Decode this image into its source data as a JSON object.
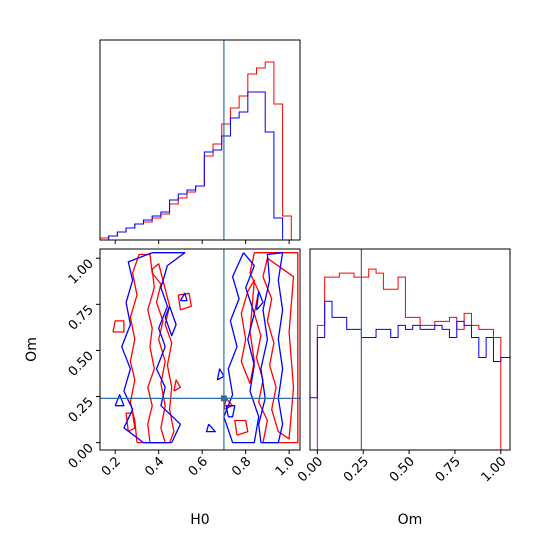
{
  "chart_data": {
    "type": "corner",
    "parameters": [
      "H0",
      "Om"
    ],
    "truths": {
      "H0": 0.7,
      "Om": 0.24
    },
    "truth_color": "#2f6f9f",
    "series_colors": [
      "#ff0000",
      "#0000ff"
    ],
    "axes": {
      "H0": {
        "label": "H0",
        "range": [
          0.13,
          1.05
        ],
        "ticks": [
          0.2,
          0.4,
          0.6,
          0.8,
          1.0
        ],
        "tick_labels": [
          "0.2",
          "0.4",
          "0.6",
          "0.8",
          "1.0"
        ]
      },
      "Om": {
        "label": "Om",
        "range": [
          -0.04,
          1.05
        ],
        "ticks": [
          0.0,
          0.25,
          0.5,
          0.75,
          1.0
        ],
        "tick_labels": [
          "0.00",
          "0.25",
          "0.50",
          "0.75",
          "1.00"
        ]
      }
    },
    "h0_histogram": {
      "bin_edges": [
        0.13,
        0.17,
        0.21,
        0.25,
        0.29,
        0.33,
        0.37,
        0.41,
        0.45,
        0.49,
        0.53,
        0.57,
        0.61,
        0.65,
        0.69,
        0.73,
        0.77,
        0.81,
        0.85,
        0.89,
        0.93,
        0.97,
        1.01,
        1.05
      ],
      "ylim": [
        0,
        1.0
      ],
      "series": [
        {
          "color": "#ff0000",
          "values": [
            0.01,
            0.02,
            0.04,
            0.06,
            0.08,
            0.09,
            0.11,
            0.13,
            0.18,
            0.21,
            0.24,
            0.27,
            0.42,
            0.48,
            0.58,
            0.66,
            0.72,
            0.83,
            0.86,
            0.89,
            0.68,
            0.12,
            0.0
          ]
        },
        {
          "color": "#0000ff",
          "values": [
            0.0,
            0.02,
            0.04,
            0.06,
            0.08,
            0.1,
            0.12,
            0.14,
            0.2,
            0.23,
            0.25,
            0.27,
            0.44,
            0.45,
            0.52,
            0.61,
            0.64,
            0.74,
            0.74,
            0.54,
            0.11,
            0.0,
            0.0
          ]
        }
      ]
    },
    "om_histogram": {
      "bin_edges": [
        -0.04,
        0.0,
        0.04,
        0.08,
        0.12,
        0.16,
        0.2,
        0.24,
        0.28,
        0.32,
        0.36,
        0.4,
        0.44,
        0.48,
        0.52,
        0.56,
        0.6,
        0.64,
        0.68,
        0.72,
        0.76,
        0.8,
        0.84,
        0.88,
        0.92,
        0.96,
        1.0,
        1.05
      ],
      "ylim": [
        0,
        1.0
      ],
      "series": [
        {
          "color": "#ff0000",
          "values": [
            0.0,
            0.62,
            0.86,
            0.86,
            0.88,
            0.88,
            0.86,
            0.86,
            0.9,
            0.88,
            0.8,
            0.8,
            0.86,
            0.66,
            0.66,
            0.62,
            0.62,
            0.64,
            0.64,
            0.66,
            0.6,
            0.68,
            0.62,
            0.6,
            0.6,
            0.56,
            0.0
          ]
        },
        {
          "color": "#0000ff",
          "values": [
            0.26,
            0.56,
            0.74,
            0.66,
            0.66,
            0.6,
            0.6,
            0.56,
            0.56,
            0.6,
            0.6,
            0.56,
            0.62,
            0.6,
            0.62,
            0.6,
            0.6,
            0.62,
            0.6,
            0.56,
            0.64,
            0.62,
            0.56,
            0.46,
            0.56,
            0.44,
            0.46
          ]
        }
      ]
    },
    "contours": [
      {
        "color": "#ff0000",
        "paths": [
          [
            [
              0.3,
              0.0
            ],
            [
              0.29,
              0.12
            ],
            [
              0.27,
              0.22
            ],
            [
              0.29,
              0.34
            ],
            [
              0.27,
              0.44
            ],
            [
              0.29,
              0.56
            ],
            [
              0.27,
              0.68
            ],
            [
              0.3,
              0.8
            ],
            [
              0.28,
              0.92
            ],
            [
              0.31,
              1.02
            ],
            [
              0.36,
              1.02
            ],
            [
              0.37,
              0.92
            ],
            [
              0.41,
              0.86
            ],
            [
              0.39,
              0.76
            ],
            [
              0.42,
              0.66
            ],
            [
              0.4,
              0.56
            ],
            [
              0.43,
              0.44
            ],
            [
              0.41,
              0.32
            ],
            [
              0.43,
              0.2
            ],
            [
              0.41,
              0.08
            ],
            [
              0.43,
              0.0
            ],
            [
              0.3,
              0.0
            ]
          ],
          [
            [
              0.36,
              0.0
            ],
            [
              0.35,
              0.1
            ],
            [
              0.37,
              0.2
            ],
            [
              0.35,
              0.3
            ],
            [
              0.38,
              0.4
            ],
            [
              0.36,
              0.52
            ],
            [
              0.37,
              0.62
            ],
            [
              0.35,
              0.72
            ],
            [
              0.38,
              0.84
            ],
            [
              0.37,
              0.94
            ],
            [
              0.4,
              0.97
            ],
            [
              0.42,
              0.88
            ],
            [
              0.45,
              0.74
            ],
            [
              0.43,
              0.64
            ],
            [
              0.46,
              0.54
            ],
            [
              0.44,
              0.42
            ],
            [
              0.46,
              0.3
            ],
            [
              0.45,
              0.18
            ],
            [
              0.47,
              0.06
            ],
            [
              0.45,
              0.0
            ],
            [
              0.36,
              0.0
            ]
          ],
          [
            [
              0.19,
              0.6
            ],
            [
              0.2,
              0.66
            ],
            [
              0.24,
              0.66
            ],
            [
              0.24,
              0.6
            ],
            [
              0.19,
              0.6
            ]
          ],
          [
            [
              0.5,
              0.72
            ],
            [
              0.49,
              0.8
            ],
            [
              0.54,
              0.81
            ],
            [
              0.55,
              0.74
            ],
            [
              0.5,
              0.72
            ]
          ],
          [
            [
              0.47,
              0.28
            ],
            [
              0.48,
              0.34
            ],
            [
              0.5,
              0.3
            ],
            [
              0.47,
              0.28
            ]
          ],
          [
            [
              0.26,
              0.06
            ],
            [
              0.25,
              0.16
            ],
            [
              0.28,
              0.16
            ],
            [
              0.29,
              0.08
            ],
            [
              0.26,
              0.06
            ]
          ],
          [
            [
              0.84,
              1.03
            ],
            [
              0.82,
              0.92
            ],
            [
              0.86,
              0.82
            ],
            [
              0.84,
              0.7
            ],
            [
              0.87,
              0.58
            ],
            [
              0.85,
              0.46
            ],
            [
              0.88,
              0.34
            ],
            [
              0.86,
              0.22
            ],
            [
              0.9,
              0.12
            ],
            [
              0.88,
              0.0
            ],
            [
              1.04,
              0.0
            ],
            [
              1.04,
              1.03
            ],
            [
              0.84,
              1.03
            ]
          ],
          [
            [
              0.9,
              1.0
            ],
            [
              0.88,
              0.9
            ],
            [
              0.92,
              0.78
            ],
            [
              0.9,
              0.66
            ],
            [
              0.93,
              0.54
            ],
            [
              0.91,
              0.42
            ],
            [
              0.94,
              0.3
            ],
            [
              0.92,
              0.18
            ],
            [
              0.95,
              0.06
            ],
            [
              1.0,
              0.02
            ],
            [
              1.02,
              0.3
            ],
            [
              1.0,
              0.6
            ],
            [
              1.02,
              0.9
            ],
            [
              0.9,
              1.0
            ]
          ],
          [
            [
              0.82,
              0.32
            ],
            [
              0.78,
              0.44
            ],
            [
              0.8,
              0.56
            ],
            [
              0.78,
              0.7
            ],
            [
              0.81,
              0.82
            ],
            [
              0.84,
              0.88
            ],
            [
              0.82,
              0.6
            ],
            [
              0.84,
              0.44
            ],
            [
              0.82,
              0.32
            ]
          ],
          [
            [
              0.76,
              0.04
            ],
            [
              0.75,
              0.12
            ],
            [
              0.8,
              0.12
            ],
            [
              0.81,
              0.06
            ],
            [
              0.76,
              0.04
            ]
          ],
          [
            [
              0.7,
              0.18
            ],
            [
              0.71,
              0.24
            ],
            [
              0.74,
              0.2
            ],
            [
              0.7,
              0.18
            ]
          ]
        ]
      },
      {
        "color": "#0000ff",
        "paths": [
          [
            [
              0.33,
              0.0
            ],
            [
              0.24,
              0.08
            ],
            [
              0.28,
              0.18
            ],
            [
              0.24,
              0.28
            ],
            [
              0.27,
              0.4
            ],
            [
              0.23,
              0.52
            ],
            [
              0.27,
              0.64
            ],
            [
              0.25,
              0.76
            ],
            [
              0.28,
              0.88
            ],
            [
              0.26,
              0.98
            ],
            [
              0.37,
              1.03
            ],
            [
              0.52,
              1.03
            ],
            [
              0.44,
              0.96
            ],
            [
              0.41,
              0.84
            ],
            [
              0.44,
              0.74
            ],
            [
              0.4,
              0.62
            ],
            [
              0.43,
              0.52
            ],
            [
              0.39,
              0.4
            ],
            [
              0.43,
              0.3
            ],
            [
              0.41,
              0.2
            ],
            [
              0.5,
              0.1
            ],
            [
              0.46,
              0.0
            ],
            [
              0.33,
              0.0
            ]
          ],
          [
            [
              0.45,
              0.74
            ],
            [
              0.43,
              0.68
            ],
            [
              0.46,
              0.58
            ],
            [
              0.48,
              0.64
            ],
            [
              0.45,
              0.74
            ]
          ],
          [
            [
              0.2,
              0.2
            ],
            [
              0.22,
              0.26
            ],
            [
              0.24,
              0.2
            ],
            [
              0.2,
              0.2
            ]
          ],
          [
            [
              0.5,
              0.77
            ],
            [
              0.52,
              0.81
            ],
            [
              0.53,
              0.77
            ],
            [
              0.5,
              0.77
            ]
          ],
          [
            [
              0.63,
              0.1
            ],
            [
              0.62,
              0.06
            ],
            [
              0.66,
              0.06
            ],
            [
              0.63,
              0.1
            ]
          ],
          [
            [
              0.79,
              1.03
            ],
            [
              0.74,
              0.9
            ],
            [
              0.77,
              0.78
            ],
            [
              0.73,
              0.66
            ],
            [
              0.76,
              0.52
            ],
            [
              0.72,
              0.4
            ],
            [
              0.74,
              0.26
            ],
            [
              0.7,
              0.14
            ],
            [
              0.74,
              0.0
            ],
            [
              0.84,
              0.0
            ],
            [
              0.86,
              0.14
            ],
            [
              0.82,
              0.28
            ],
            [
              0.84,
              0.42
            ],
            [
              0.81,
              0.56
            ],
            [
              0.84,
              0.7
            ],
            [
              0.8,
              0.84
            ],
            [
              0.84,
              0.96
            ],
            [
              0.79,
              1.03
            ]
          ],
          [
            [
              0.87,
              0.0
            ],
            [
              0.86,
              0.1
            ],
            [
              0.89,
              0.24
            ],
            [
              0.87,
              0.4
            ],
            [
              0.9,
              0.56
            ],
            [
              0.88,
              0.72
            ],
            [
              0.91,
              0.88
            ],
            [
              0.9,
              1.02
            ],
            [
              0.97,
              1.03
            ],
            [
              0.95,
              0.88
            ],
            [
              0.97,
              0.72
            ],
            [
              0.95,
              0.56
            ],
            [
              0.97,
              0.4
            ],
            [
              0.95,
              0.24
            ],
            [
              0.97,
              0.1
            ],
            [
              0.95,
              0.0
            ],
            [
              0.87,
              0.0
            ]
          ],
          [
            [
              0.85,
              0.72
            ],
            [
              0.86,
              0.82
            ],
            [
              0.88,
              0.76
            ],
            [
              0.85,
              0.72
            ]
          ],
          [
            [
              0.67,
              0.34
            ],
            [
              0.68,
              0.4
            ],
            [
              0.7,
              0.36
            ],
            [
              0.67,
              0.34
            ]
          ],
          [
            [
              0.72,
              0.14
            ],
            [
              0.71,
              0.2
            ],
            [
              0.75,
              0.2
            ],
            [
              0.74,
              0.14
            ],
            [
              0.72,
              0.14
            ]
          ]
        ]
      }
    ]
  }
}
